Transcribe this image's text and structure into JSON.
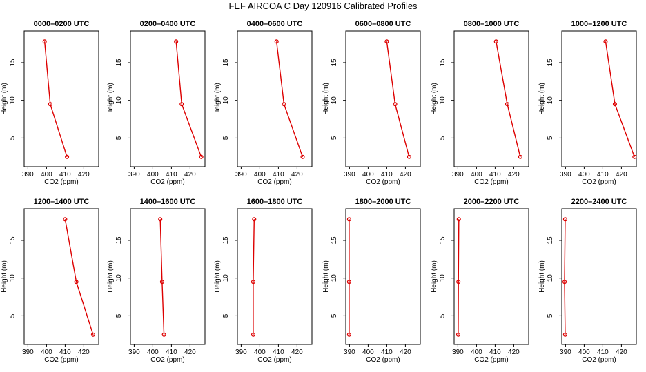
{
  "chart_data": {
    "title": "FEF AIRCOA C  Day 120916  Calibrated Profiles",
    "type": "line",
    "xlabel": "CO2 (ppm)",
    "ylabel": "Height (m)",
    "xlim": [
      388,
      428
    ],
    "ylim": [
      1.2,
      19.2
    ],
    "xticks": [
      390,
      400,
      410,
      420
    ],
    "yticks": [
      5,
      10,
      15
    ],
    "line_color": "#dd0000",
    "panels": [
      {
        "title": "0000–0200 UTC",
        "heights": [
          17.8,
          9.5,
          2.5
        ],
        "co2": [
          399,
          402,
          411
        ]
      },
      {
        "title": "0200–0400 UTC",
        "heights": [
          17.8,
          9.5,
          2.5
        ],
        "co2": [
          412.5,
          415.5,
          426
        ]
      },
      {
        "title": "0400–0600 UTC",
        "heights": [
          17.8,
          9.5,
          2.5
        ],
        "co2": [
          409,
          413,
          423
        ]
      },
      {
        "title": "0600–0800 UTC",
        "heights": [
          17.8,
          9.5,
          2.5
        ],
        "co2": [
          410,
          414.5,
          422
        ]
      },
      {
        "title": "0800–1000 UTC",
        "heights": [
          17.8,
          9.5,
          2.5
        ],
        "co2": [
          410.5,
          416.5,
          423.5
        ]
      },
      {
        "title": "1000–1200 UTC",
        "heights": [
          17.8,
          9.5,
          2.5
        ],
        "co2": [
          411.5,
          416.5,
          427
        ]
      },
      {
        "title": "1200–1400 UTC",
        "heights": [
          17.8,
          9.5,
          2.5
        ],
        "co2": [
          410,
          416,
          425
        ]
      },
      {
        "title": "1400–1600 UTC",
        "heights": [
          17.8,
          9.5,
          2.5
        ],
        "co2": [
          404,
          405,
          406
        ]
      },
      {
        "title": "1600–1800 UTC",
        "heights": [
          17.8,
          9.5,
          2.5
        ],
        "co2": [
          397,
          396.5,
          396.5
        ]
      },
      {
        "title": "1800–2000 UTC",
        "heights": [
          17.8,
          9.5,
          2.5
        ],
        "co2": [
          389.8,
          389.8,
          389.8
        ]
      },
      {
        "title": "2000–2200 UTC",
        "heights": [
          17.8,
          9.5,
          2.5
        ],
        "co2": [
          390.5,
          390.3,
          390.2
        ]
      },
      {
        "title": "2200–2400 UTC",
        "heights": [
          17.8,
          9.5,
          2.5
        ],
        "co2": [
          389.8,
          389.5,
          389.8
        ]
      }
    ]
  }
}
